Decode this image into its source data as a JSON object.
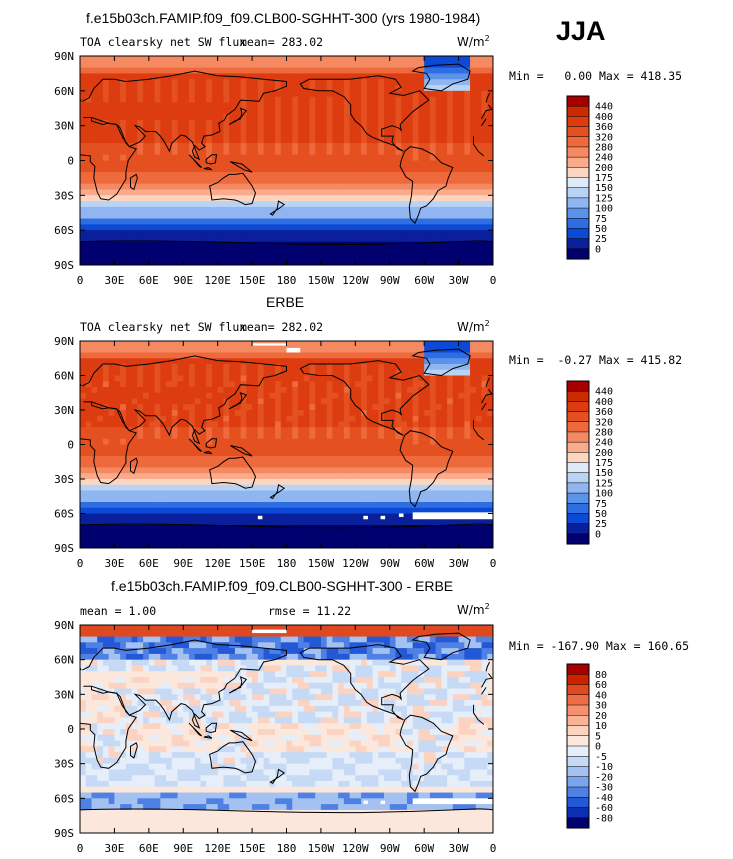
{
  "season": "JJA",
  "unit_base": "W/m",
  "unit_exp": "2",
  "panels": [
    {
      "title": "f.e15b03ch.FAMIP.f09_f09.CLB00-SGHHT-300 (yrs 1980-1984)",
      "left_text": "TOA clearsky net SW flux",
      "mean_text": "mean= 283.02",
      "rmse_text": "",
      "minmax": "Min =   0.00 Max = 418.35",
      "levels": [
        "440",
        "400",
        "360",
        "320",
        "280",
        "240",
        "200",
        "175",
        "150",
        "125",
        "100",
        "75",
        "50",
        "25",
        "0"
      ],
      "colors": [
        "#a80000",
        "#cc2a00",
        "#dd3c10",
        "#e55020",
        "#ee6a3c",
        "#f58a62",
        "#f9ab8c",
        "#fdd6c2",
        "#dfeaf8",
        "#b9d3f4",
        "#8fb6f0",
        "#5c93ea",
        "#2f6ee2",
        "#0c4ad6",
        "#0a1f9c",
        "#00006e"
      ],
      "mean": 283.02,
      "min": 0.0,
      "max": 418.35
    },
    {
      "title": "ERBE",
      "left_text": "TOA clearsky net SW flux",
      "mean_text": "mean= 282.02",
      "rmse_text": "",
      "minmax": "Min =  -0.27 Max = 415.82",
      "levels": [
        "440",
        "400",
        "360",
        "320",
        "280",
        "240",
        "200",
        "175",
        "150",
        "125",
        "100",
        "75",
        "50",
        "25",
        "0"
      ],
      "colors": [
        "#a80000",
        "#cc2a00",
        "#dd3c10",
        "#e55020",
        "#ee6a3c",
        "#f58a62",
        "#f9ab8c",
        "#fdd6c2",
        "#dfeaf8",
        "#b9d3f4",
        "#8fb6f0",
        "#5c93ea",
        "#2f6ee2",
        "#0c4ad6",
        "#0a1f9c",
        "#00006e"
      ],
      "mean": 282.02,
      "min": -0.27,
      "max": 415.82
    },
    {
      "title": "f.e15b03ch.FAMIP.f09_f09.CLB00-SGHHT-300 - ERBE",
      "left_text": "mean =    1.00",
      "mean_text": "",
      "rmse_text": "rmse =   11.22",
      "minmax": "Min = -167.90 Max = 160.65",
      "levels": [
        "80",
        "60",
        "40",
        "30",
        "20",
        "10",
        "5",
        "0",
        "-5",
        "-10",
        "-20",
        "-30",
        "-40",
        "-60",
        "-80"
      ],
      "colors": [
        "#a80000",
        "#cc2200",
        "#e04820",
        "#ee6c46",
        "#f59070",
        "#f9b498",
        "#fcd2c0",
        "#fbe7dc",
        "#e6eef9",
        "#c7daf5",
        "#a3c1f1",
        "#7aa4ec",
        "#4f80e4",
        "#2358d6",
        "#0a2fb0",
        "#00006e"
      ],
      "mean": 1.0,
      "rmse": 11.22,
      "min": -167.9,
      "max": 160.65
    }
  ],
  "lat_labels": [
    "90N",
    "60N",
    "30N",
    "0",
    "30S",
    "60S",
    "90S"
  ],
  "lon_labels": [
    "0",
    "30E",
    "60E",
    "90E",
    "120E",
    "150E",
    "180",
    "150W",
    "120W",
    "90W",
    "60W",
    "30W",
    "0"
  ],
  "chart_data": [
    {
      "type": "heatmap",
      "title": "f.e15b03ch.FAMIP.f09_f09.CLB00-SGHHT-300 (yrs 1980-1984)",
      "subtitle": "TOA clearsky net SW flux",
      "unit": "W/m2",
      "mean": 283.02,
      "min": 0.0,
      "max": 418.35,
      "xlim": [
        0,
        360
      ],
      "ylim": [
        -90,
        90
      ],
      "zonal_profile": {
        "lat": [
          90,
          75,
          60,
          45,
          30,
          15,
          0,
          -15,
          -30,
          -45,
          -60,
          -75,
          -90
        ],
        "value": [
          390,
          385,
          365,
          360,
          385,
          385,
          340,
          310,
          255,
          170,
          75,
          5,
          0
        ]
      }
    },
    {
      "type": "heatmap",
      "title": "ERBE",
      "subtitle": "TOA clearsky net SW flux",
      "unit": "W/m2",
      "mean": 282.02,
      "min": -0.27,
      "max": 415.82,
      "xlim": [
        0,
        360
      ],
      "ylim": [
        -90,
        90
      ],
      "zonal_profile": {
        "lat": [
          90,
          75,
          60,
          45,
          30,
          15,
          0,
          -15,
          -30,
          -45,
          -60,
          -75,
          -90
        ],
        "value": [
          395,
          380,
          370,
          365,
          385,
          380,
          345,
          315,
          260,
          175,
          65,
          2,
          0
        ]
      }
    },
    {
      "type": "heatmap",
      "title": "f.e15b03ch.FAMIP.f09_f09.CLB00-SGHHT-300 - ERBE",
      "unit": "W/m2",
      "mean": 1.0,
      "rmse": 11.22,
      "min": -167.9,
      "max": 160.65,
      "xlim": [
        0,
        360
      ],
      "ylim": [
        -90,
        90
      ]
    }
  ]
}
